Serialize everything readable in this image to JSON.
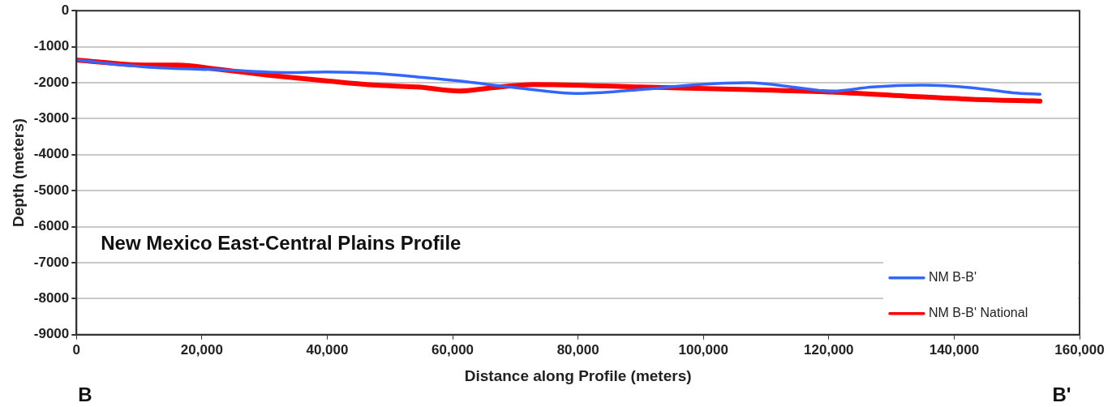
{
  "chart_data": {
    "type": "line",
    "xlabel": "Distance along Profile (meters)",
    "ylabel": "Depth (meters)",
    "annotations": [
      "New Mexico East-Central Plains Profile",
      "B",
      "B'"
    ],
    "series": [
      {
        "name": "NM B-B'",
        "color": "#3366ff",
        "x": [
          0,
          10800,
          24000,
          34600,
          39900,
          47800,
          54400,
          61000,
          70200,
          80100,
          90000,
          99300,
          107200,
          115100,
          120400,
          127000,
          134900,
          142800,
          149400,
          153700
        ],
        "values": [
          -1370,
          -1560,
          -1650,
          -1720,
          -1700,
          -1740,
          -1840,
          -1950,
          -2140,
          -2300,
          -2190,
          -2050,
          -2000,
          -2140,
          -2240,
          -2120,
          -2070,
          -2140,
          -2280,
          -2320
        ]
      },
      {
        "name": "NM B-B' National",
        "color": "#ff0000",
        "x": [
          0,
          10800,
          16100,
          22700,
          30600,
          39900,
          47800,
          54400,
          61000,
          66300,
          72900,
          90000,
          107200,
          120400,
          132300,
          142800,
          153700
        ],
        "values": [
          -1370,
          -1510,
          -1510,
          -1630,
          -1790,
          -1950,
          -2070,
          -2120,
          -2230,
          -2140,
          -2050,
          -2120,
          -2190,
          -2260,
          -2370,
          -2460,
          -2510
        ]
      }
    ],
    "xlim": [
      0,
      160000
    ],
    "xticks": [
      {
        "value": 0,
        "label": "0"
      },
      {
        "value": 20000,
        "label": "20,000"
      },
      {
        "value": 40000,
        "label": "40,000"
      },
      {
        "value": 60000,
        "label": "60,000"
      },
      {
        "value": 80000,
        "label": "80,000"
      },
      {
        "value": 100000,
        "label": "100,000"
      },
      {
        "value": 120000,
        "label": "120,000"
      },
      {
        "value": 140000,
        "label": "140,000"
      },
      {
        "value": 160000,
        "label": "160,000"
      }
    ],
    "ylim": [
      -9000,
      0
    ],
    "yticks": [
      -9000,
      -8000,
      -7000,
      -6000,
      -5000,
      -4000,
      -3000,
      -2000,
      -1000,
      0
    ],
    "grid": "y",
    "legend": "bottom right",
    "marker": "none",
    "line_style": "solid"
  }
}
